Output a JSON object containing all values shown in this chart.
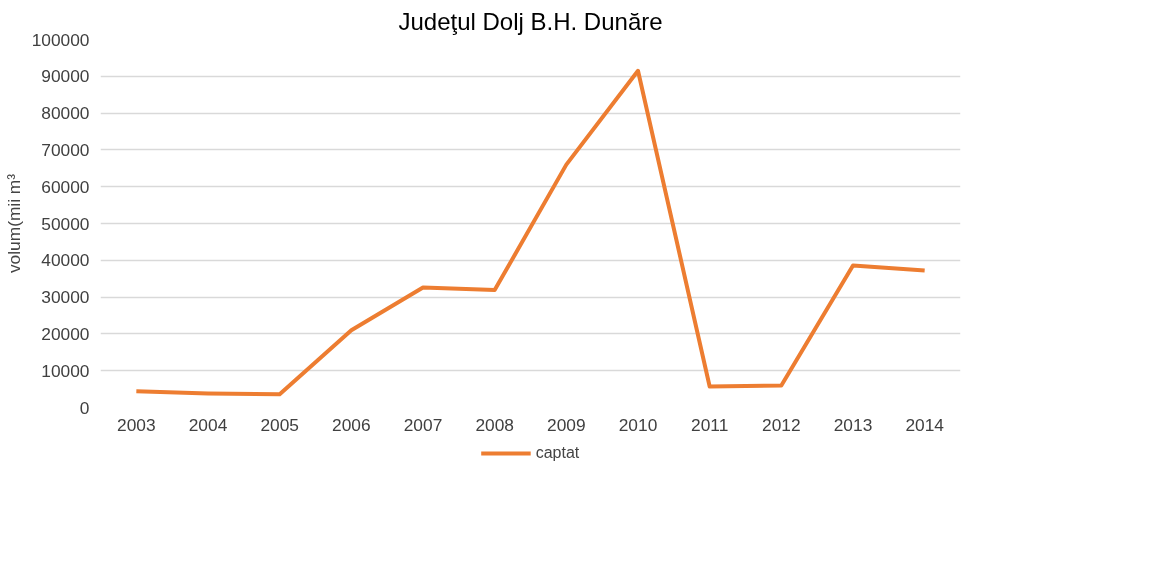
{
  "chart_data": {
    "type": "line",
    "title": "Judeţul Dolj B.H. Dunăre",
    "ylabel": "volum(mii m³",
    "categories": [
      "2003",
      "2004",
      "2005",
      "2006",
      "2007",
      "2008",
      "2009",
      "2010",
      "2011",
      "2012",
      "2013",
      "2014"
    ],
    "series": [
      {
        "name": "captat",
        "color": "#ed7d31",
        "values": [
          4400,
          3800,
          3600,
          21000,
          32600,
          31900,
          66000,
          91500,
          5700,
          6000,
          38600,
          37200
        ]
      }
    ],
    "ylim": [
      0,
      100000
    ],
    "yticks": [
      0,
      10000,
      20000,
      30000,
      40000,
      50000,
      60000,
      70000,
      80000,
      90000,
      100000
    ],
    "grid": "y",
    "legend": "bottom",
    "marker": "none",
    "line_style": "solid"
  }
}
